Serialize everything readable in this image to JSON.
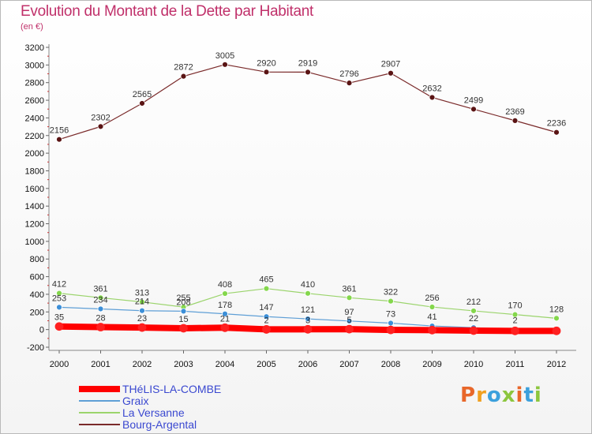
{
  "title": "Evolution du Montant de la Dette par Habitant",
  "subtitle": "(en €)",
  "logo": {
    "text": "Proxiti",
    "colors": [
      "#e8672a",
      "#f0a020",
      "#3ca0dc",
      "#8cc63e",
      "#e8672a",
      "#3ca0dc",
      "#8cc63e"
    ]
  },
  "chart_data": {
    "type": "line",
    "categories": [
      "2000",
      "2001",
      "2002",
      "2003",
      "2004",
      "2005",
      "2006",
      "2007",
      "2008",
      "2009",
      "2010",
      "2011",
      "2012"
    ],
    "y_ticks": [
      "-200",
      "0",
      "200",
      "400",
      "600",
      "800",
      "1000",
      "1200",
      "1400",
      "1600",
      "1800",
      "2000",
      "2200",
      "2400",
      "2600",
      "2800",
      "3000",
      "3200"
    ],
    "ylim": [
      -200,
      3200
    ],
    "grid": false,
    "legend_position": "bottom-left",
    "series": [
      {
        "name": "THéLIS-LA-COMBE",
        "color": "#ff0000",
        "marker": "#ff2020",
        "values": [
          35,
          28,
          23,
          15,
          21,
          2,
          3,
          5,
          -4,
          -6,
          -12,
          -15,
          -15
        ],
        "labels": [
          "35",
          "28",
          "23",
          "15",
          "21",
          "2",
          "3",
          "5",
          "",
          "",
          "",
          "",
          ""
        ]
      },
      {
        "name": "Graix",
        "color": "#5f9fd6",
        "marker": "#3c8fd8",
        "values": [
          253,
          234,
          214,
          208,
          178,
          147,
          121,
          97,
          73,
          41,
          22,
          2,
          0
        ],
        "labels": [
          "253",
          "234",
          "214",
          "208",
          "178",
          "147",
          "121",
          "97",
          "73",
          "41",
          "22",
          "2",
          ""
        ]
      },
      {
        "name": "La Versanne",
        "color": "#9bd46c",
        "marker": "#84d74c",
        "values": [
          412,
          361,
          313,
          255,
          408,
          465,
          410,
          361,
          322,
          256,
          212,
          170,
          128
        ],
        "labels": [
          "412",
          "361",
          "313",
          "255",
          "408",
          "465",
          "410",
          "361",
          "322",
          "256",
          "212",
          "170",
          "128"
        ]
      },
      {
        "name": "Bourg-Argental",
        "color": "#7a2a2a",
        "marker": "#5a1414",
        "values": [
          2156,
          2302,
          2565,
          2872,
          3005,
          2920,
          2919,
          2796,
          2907,
          2632,
          2499,
          2369,
          2236
        ],
        "labels": [
          "2156",
          "2302",
          "2565",
          "2872",
          "3005",
          "2920",
          "2919",
          "2796",
          "2907",
          "2632",
          "2499",
          "2369",
          "2236"
        ]
      }
    ]
  }
}
